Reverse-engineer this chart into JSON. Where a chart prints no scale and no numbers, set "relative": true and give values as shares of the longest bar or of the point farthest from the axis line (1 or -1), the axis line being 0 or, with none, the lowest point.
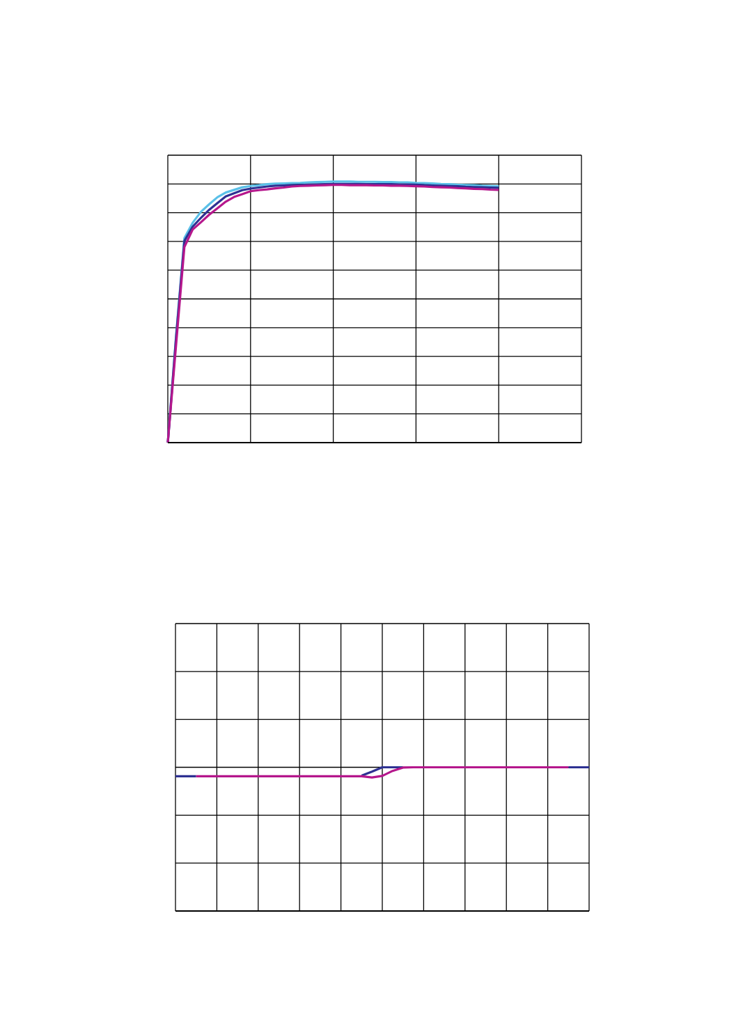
{
  "chart_data": [
    {
      "type": "line",
      "relative": true,
      "grid": true,
      "line_style": "solid",
      "marker": "none",
      "categories": [
        null,
        null,
        null,
        null,
        null,
        null,
        null,
        null,
        null,
        null,
        null,
        null,
        null,
        null,
        null,
        null,
        null,
        null,
        null,
        null,
        null,
        null,
        null,
        null,
        null,
        null,
        null,
        null,
        null,
        null,
        null,
        null,
        null,
        null,
        null,
        null,
        null,
        null,
        null,
        null,
        null,
        null,
        null,
        null,
        null,
        null,
        null,
        null,
        null,
        null,
        null
      ],
      "series": [
        {
          "color": "#5bc0e8",
          "values": [
            0,
            0.408,
            0.783,
            0.842,
            0.884,
            0.913,
            0.94,
            0.958,
            0.968,
            0.978,
            0.983,
            0.986,
            0.99,
            0.992,
            0.993,
            0.994,
            0.995,
            0.997,
            0.998,
            0.999,
            1,
            1,
            1,
            0.999,
            0.999,
            0.999,
            0.998,
            0.998,
            0.997,
            0.997,
            0.995,
            0.994,
            0.993,
            0.991,
            0.99,
            0.988,
            0.987,
            0.986,
            0.984,
            0.983,
            0.982,
            null,
            null,
            null,
            null,
            null,
            null,
            null,
            null,
            null,
            null
          ]
        },
        {
          "color": "#2e3192",
          "values": [
            0,
            0.403,
            0.772,
            0.827,
            0.861,
            0.892,
            0.918,
            0.943,
            0.955,
            0.967,
            0.973,
            0.977,
            0.981,
            0.984,
            0.985,
            0.986,
            0.987,
            0.988,
            0.989,
            0.99,
            0.991,
            0.991,
            0.991,
            0.991,
            0.99,
            0.99,
            0.99,
            0.99,
            0.989,
            0.989,
            0.988,
            0.986,
            0.985,
            0.984,
            0.983,
            0.982,
            0.98,
            0.979,
            0.978,
            0.977,
            0.976,
            null,
            null,
            null,
            null,
            null,
            null,
            null,
            null,
            null,
            null
          ]
        },
        {
          "color": "#b5178c",
          "values": [
            0,
            0.375,
            0.749,
            0.816,
            0.844,
            0.873,
            0.898,
            0.923,
            0.941,
            0.952,
            0.963,
            0.967,
            0.97,
            0.974,
            0.977,
            0.981,
            0.983,
            0.984,
            0.985,
            0.986,
            0.987,
            0.987,
            0.986,
            0.986,
            0.986,
            0.985,
            0.985,
            0.984,
            0.984,
            0.983,
            0.982,
            0.981,
            0.979,
            0.978,
            0.977,
            0.975,
            0.974,
            0.972,
            0.971,
            0.969,
            0.968,
            null,
            null,
            null,
            null,
            null,
            null,
            null,
            null,
            null,
            null
          ]
        }
      ]
    },
    {
      "type": "line",
      "relative": true,
      "grid": true,
      "line_style": "solid",
      "marker": "none",
      "categories": [
        null,
        null,
        null,
        null,
        null,
        null,
        null,
        null,
        null,
        null,
        null,
        null,
        null,
        null,
        null,
        null,
        null,
        null,
        null,
        null,
        null,
        null,
        null,
        null,
        null,
        null,
        null,
        null,
        null,
        null,
        null,
        null,
        null,
        null,
        null,
        null,
        null,
        null,
        null,
        null,
        null
      ],
      "series": [
        {
          "color": "#2e3192",
          "values": [
            0.9375,
            0.9375,
            0.9375,
            null,
            null,
            null,
            null,
            null,
            null,
            null,
            null,
            null,
            null,
            null,
            null,
            null,
            null,
            null,
            0.942,
            0.97,
            1,
            1,
            1,
            null,
            null,
            null,
            null,
            null,
            null,
            null,
            null,
            null,
            null,
            null,
            null,
            null,
            null,
            null,
            1,
            1,
            1
          ]
        },
        {
          "color": "#b5178c",
          "values": [
            null,
            null,
            0.9375,
            0.9375,
            0.9375,
            0.9375,
            0.9375,
            0.9375,
            0.9375,
            0.9375,
            0.9375,
            0.9375,
            0.9375,
            0.9375,
            0.9375,
            0.9375,
            0.9375,
            0.9375,
            0.9375,
            0.929,
            0.94,
            0.975,
            0.998,
            1,
            1,
            1,
            1,
            1,
            1,
            1,
            1,
            1,
            1,
            1,
            1,
            1,
            1,
            1,
            1,
            null,
            null
          ]
        }
      ]
    }
  ]
}
